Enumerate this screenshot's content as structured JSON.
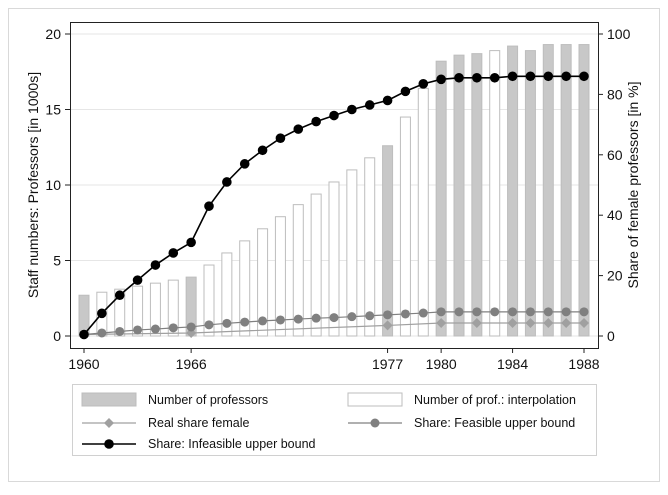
{
  "chart_data": {
    "type": "bar",
    "ylabel_left": "Staff numbers: Professors [in 1000s]",
    "ylabel_right": "Share of female professors [in %]",
    "ylim_left": [
      0,
      20
    ],
    "ylim_right": [
      0,
      100
    ],
    "xlim": [
      1960,
      1988
    ],
    "yticks_left": [
      0,
      5,
      10,
      15,
      20
    ],
    "yticks_right": [
      0,
      20,
      40,
      60,
      80,
      100
    ],
    "xticks": [
      1960,
      1966,
      1977,
      1980,
      1984,
      1988
    ],
    "grid": "horizontal",
    "legend_placement": "bottom",
    "legend": {
      "bars_actual": "Number of professors",
      "bars_interp": "Number of prof.: interpolation",
      "real_share": "Real share female",
      "feasible": "Share: Feasible upper bound",
      "infeasible": "Share: Infeasible upper bound"
    },
    "colors": {
      "bar_fill": "#c8c8c8",
      "bar_edge": "#bdbdbd",
      "real_share": "#a0a0a0",
      "feasible": "#808080",
      "infeasible": "#000000"
    },
    "professors": {
      "years": [
        1960,
        1961,
        1962,
        1963,
        1964,
        1965,
        1966,
        1967,
        1968,
        1969,
        1970,
        1971,
        1972,
        1973,
        1974,
        1975,
        1976,
        1977,
        1978,
        1979,
        1980,
        1981,
        1982,
        1983,
        1984,
        1985,
        1986,
        1987,
        1988
      ],
      "values": [
        2.7,
        2.9,
        3.1,
        3.3,
        3.5,
        3.7,
        3.9,
        4.7,
        5.5,
        6.3,
        7.1,
        7.9,
        8.7,
        9.4,
        10.2,
        11.0,
        11.8,
        12.6,
        14.5,
        16.4,
        18.2,
        18.6,
        18.7,
        18.9,
        19.2,
        18.9,
        19.3,
        19.3,
        19.3
      ],
      "interpolated": [
        false,
        true,
        true,
        true,
        true,
        true,
        false,
        true,
        true,
        true,
        true,
        true,
        true,
        true,
        true,
        true,
        true,
        false,
        true,
        true,
        false,
        false,
        false,
        true,
        false,
        false,
        false,
        false,
        false
      ]
    },
    "real_share_female": {
      "years": [
        1960,
        1966,
        1977,
        1980,
        1982,
        1984,
        1985,
        1986,
        1987,
        1988
      ],
      "values": [
        0.5,
        1.0,
        3.5,
        4.3,
        4.3,
        4.3,
        4.3,
        4.3,
        4.3,
        4.3
      ]
    },
    "feasible_upper_bound": {
      "years": [
        1960,
        1961,
        1962,
        1963,
        1964,
        1965,
        1966,
        1967,
        1968,
        1969,
        1970,
        1971,
        1972,
        1973,
        1974,
        1975,
        1976,
        1977,
        1978,
        1979,
        1980,
        1981,
        1982,
        1983,
        1984,
        1985,
        1986,
        1987,
        1988
      ],
      "values": [
        0.5,
        1.0,
        1.5,
        2.0,
        2.3,
        2.7,
        3.0,
        3.7,
        4.2,
        4.6,
        5.0,
        5.3,
        5.6,
        5.9,
        6.1,
        6.4,
        6.7,
        7.0,
        7.3,
        7.6,
        8.0,
        8.0,
        8.0,
        8.0,
        8.0,
        8.0,
        8.0,
        8.0,
        8.0
      ]
    },
    "infeasible_upper_bound": {
      "years": [
        1960,
        1961,
        1962,
        1963,
        1964,
        1965,
        1966,
        1967,
        1968,
        1969,
        1970,
        1971,
        1972,
        1973,
        1974,
        1975,
        1976,
        1977,
        1978,
        1979,
        1980,
        1981,
        1982,
        1983,
        1984,
        1985,
        1986,
        1987,
        1988
      ],
      "values": [
        0.5,
        7.5,
        13.5,
        18.5,
        23.5,
        27.5,
        31.0,
        43.0,
        51.0,
        57.0,
        61.5,
        65.5,
        68.5,
        71.0,
        73.0,
        75.0,
        76.5,
        78.0,
        81.0,
        83.5,
        85.0,
        85.5,
        85.5,
        85.5,
        86.0,
        86.0,
        86.0,
        86.0,
        86.0
      ]
    }
  }
}
